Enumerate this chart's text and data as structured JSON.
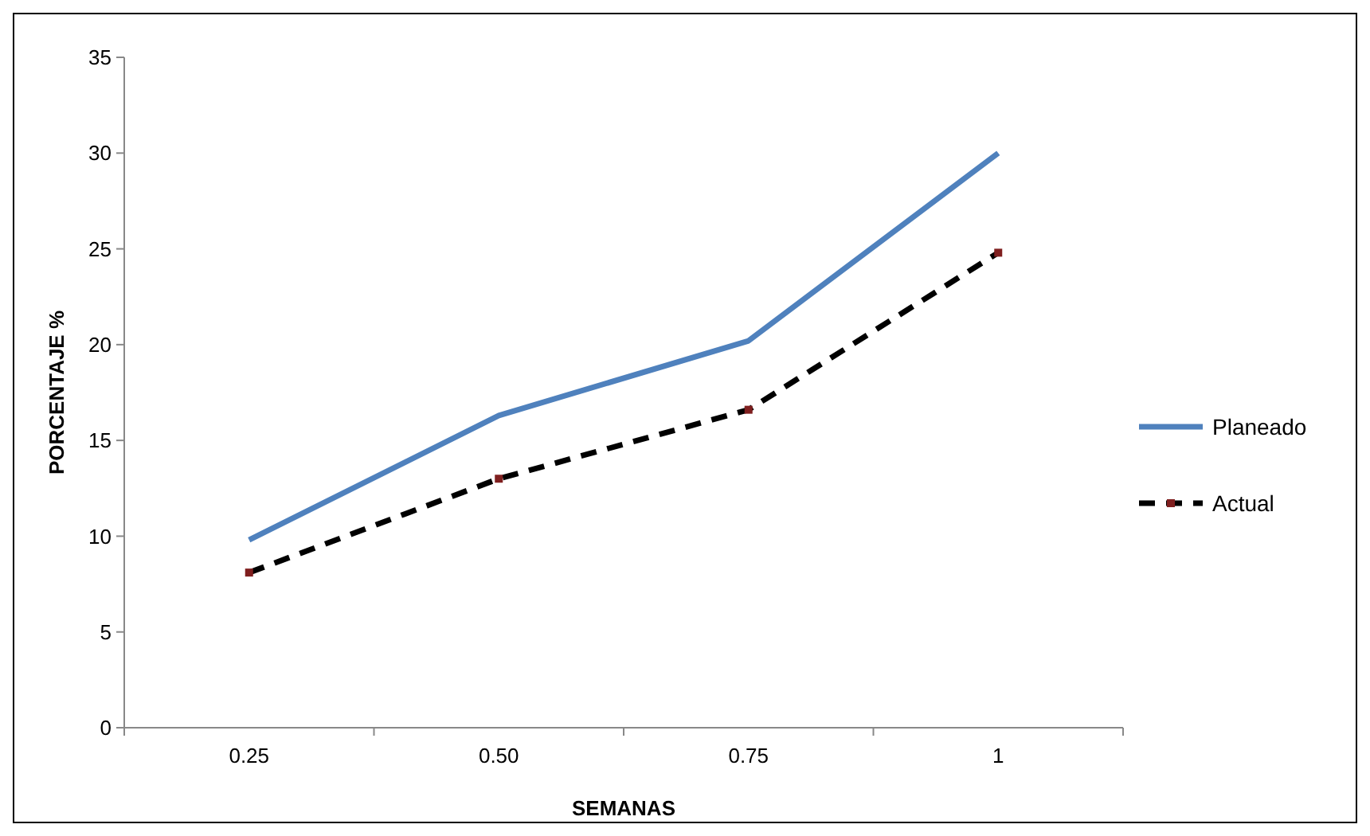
{
  "chart_data": {
    "type": "line",
    "xlabel": "SEMANAS",
    "ylabel": "PORCENTAJE %",
    "categories": [
      "0.25",
      "0.50",
      "0.75",
      "1"
    ],
    "ylim": [
      0,
      35
    ],
    "yticks": [
      0,
      5,
      10,
      15,
      20,
      25,
      30,
      35
    ],
    "grid": false,
    "legend": "right",
    "series": [
      {
        "name": "Planeado",
        "color": "#4f81bd",
        "values": [
          9.8,
          16.3,
          20.2,
          30
        ],
        "line_style": "solid",
        "marker": "none"
      },
      {
        "name": "Actual",
        "color": "#000000",
        "values": [
          8.1,
          13,
          16.6,
          24.8
        ],
        "line_style": "dashed",
        "marker": "square"
      }
    ]
  }
}
